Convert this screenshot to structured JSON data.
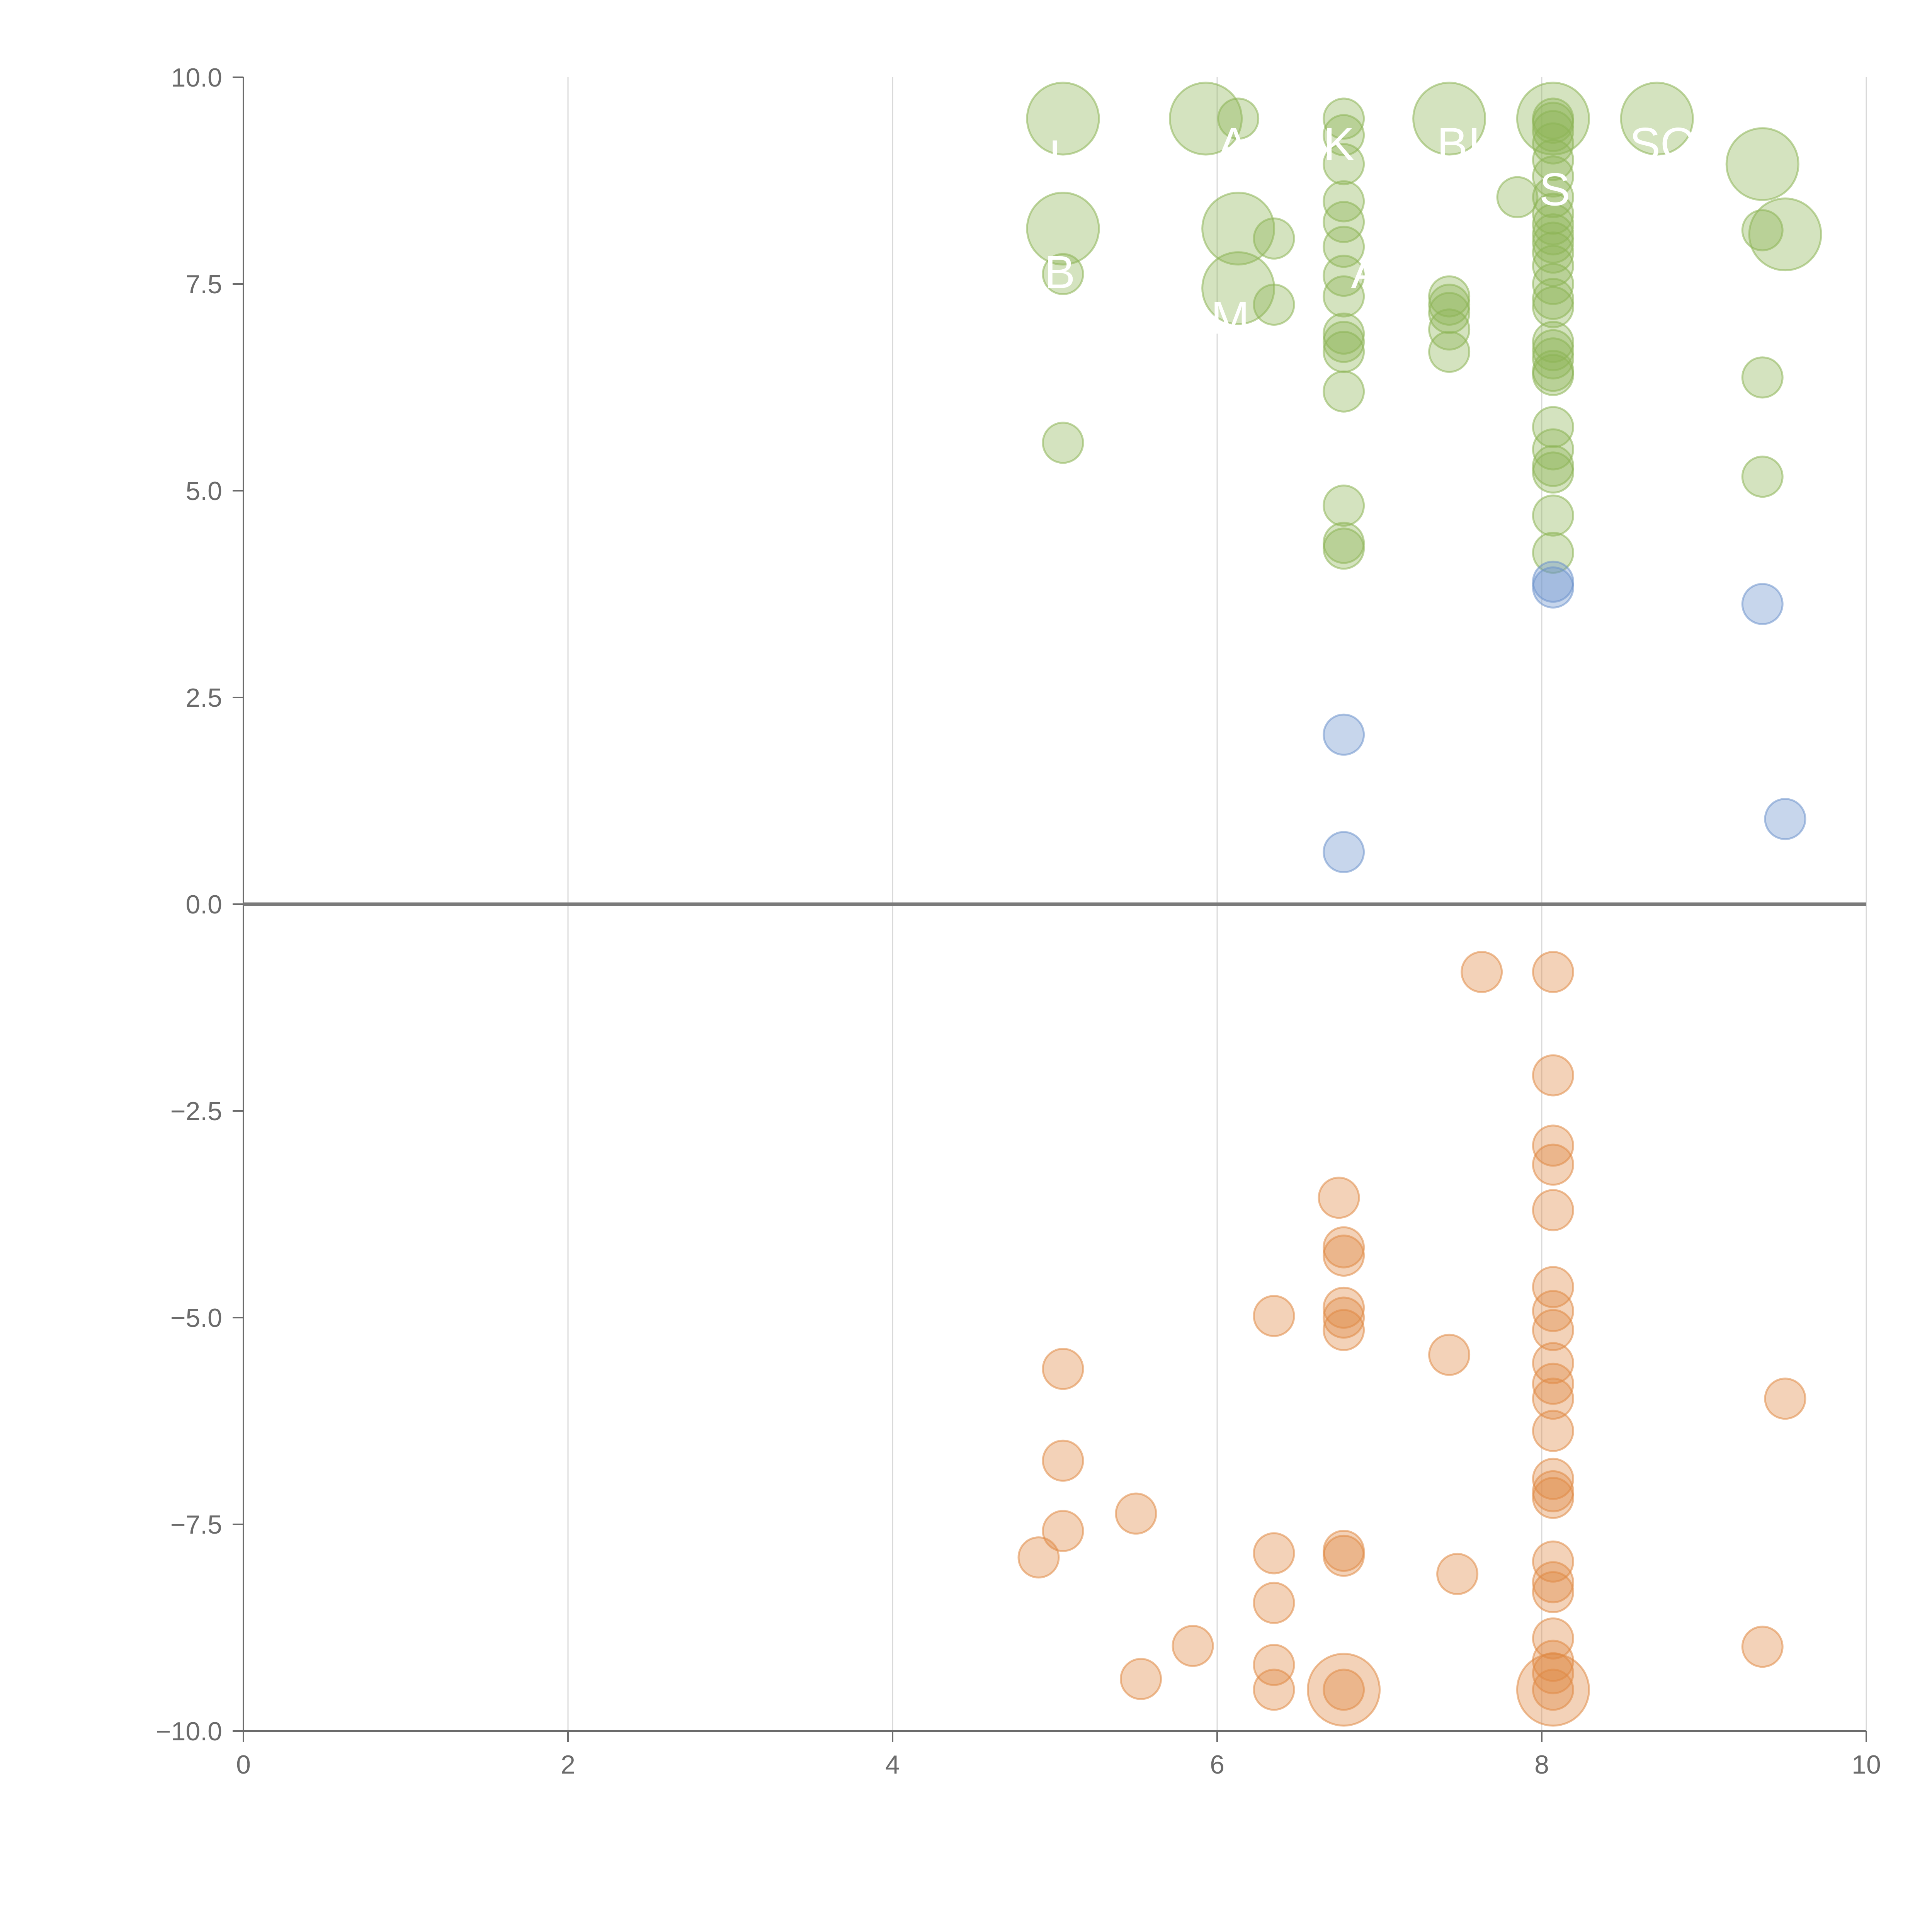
{
  "chart_data": {
    "type": "scatter",
    "xlim": [
      0,
      10
    ],
    "ylim": [
      -10,
      10
    ],
    "x_ticks": [
      "0",
      "2",
      "4",
      "6",
      "8",
      "10"
    ],
    "y_ticks": [
      "10.0",
      "7.5",
      "5.0",
      "2.5",
      "0.0",
      "−2.5",
      "−5.0",
      "−7.5",
      "−10.0"
    ],
    "grid": {
      "vertical": true,
      "horizontal": false
    },
    "zero_line": true,
    "colors": {
      "positive": "#8db556",
      "neutral": "#6d93cc",
      "negative": "#e08a45"
    },
    "points": [
      {
        "x": 5.05,
        "y": 9.5,
        "size": "large",
        "group": "positive"
      },
      {
        "x": 5.93,
        "y": 9.5,
        "size": "large",
        "group": "positive"
      },
      {
        "x": 6.13,
        "y": 9.5,
        "size": "small",
        "group": "positive"
      },
      {
        "x": 6.78,
        "y": 9.5,
        "size": "small",
        "group": "positive"
      },
      {
        "x": 6.78,
        "y": 9.3,
        "size": "small",
        "group": "positive"
      },
      {
        "x": 6.78,
        "y": 8.95,
        "size": "small",
        "group": "positive"
      },
      {
        "x": 6.78,
        "y": 8.5,
        "size": "small",
        "group": "positive"
      },
      {
        "x": 6.78,
        "y": 8.25,
        "size": "small",
        "group": "positive"
      },
      {
        "x": 6.78,
        "y": 7.95,
        "size": "small",
        "group": "positive"
      },
      {
        "x": 6.78,
        "y": 7.6,
        "size": "small",
        "group": "positive"
      },
      {
        "x": 6.78,
        "y": 7.35,
        "size": "small",
        "group": "positive"
      },
      {
        "x": 6.78,
        "y": 6.9,
        "size": "small",
        "group": "positive"
      },
      {
        "x": 6.78,
        "y": 6.8,
        "size": "small",
        "group": "positive"
      },
      {
        "x": 6.78,
        "y": 6.68,
        "size": "small",
        "group": "positive"
      },
      {
        "x": 6.78,
        "y": 6.2,
        "size": "small",
        "group": "positive"
      },
      {
        "x": 6.78,
        "y": 4.82,
        "size": "small",
        "group": "positive"
      },
      {
        "x": 6.78,
        "y": 4.37,
        "size": "small",
        "group": "positive"
      },
      {
        "x": 6.78,
        "y": 4.3,
        "size": "small",
        "group": "positive"
      },
      {
        "x": 7.43,
        "y": 9.5,
        "size": "large",
        "group": "positive"
      },
      {
        "x": 7.43,
        "y": 7.35,
        "size": "small",
        "group": "positive"
      },
      {
        "x": 7.43,
        "y": 7.25,
        "size": "small",
        "group": "positive"
      },
      {
        "x": 7.43,
        "y": 7.15,
        "size": "small",
        "group": "positive"
      },
      {
        "x": 7.43,
        "y": 6.95,
        "size": "small",
        "group": "positive"
      },
      {
        "x": 7.43,
        "y": 6.68,
        "size": "small",
        "group": "positive"
      },
      {
        "x": 7.85,
        "y": 8.55,
        "size": "small",
        "group": "positive"
      },
      {
        "x": 8.07,
        "y": 9.5,
        "size": "large",
        "group": "positive"
      },
      {
        "x": 8.07,
        "y": 9.5,
        "size": "small",
        "group": "positive"
      },
      {
        "x": 8.07,
        "y": 9.45,
        "size": "small",
        "group": "positive"
      },
      {
        "x": 8.07,
        "y": 9.35,
        "size": "small",
        "group": "positive"
      },
      {
        "x": 8.07,
        "y": 9.2,
        "size": "small",
        "group": "positive"
      },
      {
        "x": 8.07,
        "y": 9.0,
        "size": "small",
        "group": "positive"
      },
      {
        "x": 8.07,
        "y": 8.8,
        "size": "small",
        "group": "positive"
      },
      {
        "x": 8.07,
        "y": 8.55,
        "size": "small",
        "group": "positive"
      },
      {
        "x": 8.07,
        "y": 8.35,
        "size": "small",
        "group": "positive"
      },
      {
        "x": 8.07,
        "y": 8.22,
        "size": "small",
        "group": "positive"
      },
      {
        "x": 8.07,
        "y": 8.1,
        "size": "small",
        "group": "positive"
      },
      {
        "x": 8.07,
        "y": 8.0,
        "size": "small",
        "group": "positive"
      },
      {
        "x": 8.07,
        "y": 7.88,
        "size": "small",
        "group": "positive"
      },
      {
        "x": 8.07,
        "y": 7.72,
        "size": "small",
        "group": "positive"
      },
      {
        "x": 8.07,
        "y": 7.5,
        "size": "small",
        "group": "positive"
      },
      {
        "x": 8.07,
        "y": 7.32,
        "size": "small",
        "group": "positive"
      },
      {
        "x": 8.07,
        "y": 7.22,
        "size": "small",
        "group": "positive"
      },
      {
        "x": 8.07,
        "y": 6.8,
        "size": "small",
        "group": "positive"
      },
      {
        "x": 8.07,
        "y": 6.7,
        "size": "small",
        "group": "positive"
      },
      {
        "x": 8.07,
        "y": 6.6,
        "size": "small",
        "group": "positive"
      },
      {
        "x": 8.07,
        "y": 6.45,
        "size": "small",
        "group": "positive"
      },
      {
        "x": 8.07,
        "y": 6.4,
        "size": "small",
        "group": "positive"
      },
      {
        "x": 8.07,
        "y": 5.77,
        "size": "small",
        "group": "positive"
      },
      {
        "x": 8.07,
        "y": 5.5,
        "size": "small",
        "group": "positive"
      },
      {
        "x": 8.07,
        "y": 5.3,
        "size": "small",
        "group": "positive"
      },
      {
        "x": 8.07,
        "y": 5.22,
        "size": "small",
        "group": "positive"
      },
      {
        "x": 8.07,
        "y": 4.7,
        "size": "small",
        "group": "positive"
      },
      {
        "x": 8.07,
        "y": 4.25,
        "size": "small",
        "group": "positive"
      },
      {
        "x": 8.71,
        "y": 9.5,
        "size": "large",
        "group": "positive"
      },
      {
        "x": 5.05,
        "y": 8.17,
        "size": "large",
        "group": "positive"
      },
      {
        "x": 5.05,
        "y": 7.62,
        "size": "small",
        "group": "positive"
      },
      {
        "x": 5.05,
        "y": 5.58,
        "size": "small",
        "group": "positive"
      },
      {
        "x": 6.13,
        "y": 8.17,
        "size": "large",
        "group": "positive"
      },
      {
        "x": 6.35,
        "y": 8.05,
        "size": "small",
        "group": "positive"
      },
      {
        "x": 6.13,
        "y": 7.45,
        "size": "large",
        "group": "positive"
      },
      {
        "x": 6.35,
        "y": 7.25,
        "size": "small",
        "group": "positive"
      },
      {
        "x": 9.36,
        "y": 8.95,
        "size": "large",
        "group": "positive"
      },
      {
        "x": 9.5,
        "y": 8.1,
        "size": "large",
        "group": "positive"
      },
      {
        "x": 9.36,
        "y": 8.15,
        "size": "small",
        "group": "positive"
      },
      {
        "x": 9.36,
        "y": 6.37,
        "size": "small",
        "group": "positive"
      },
      {
        "x": 9.36,
        "y": 5.17,
        "size": "small",
        "group": "positive"
      },
      {
        "x": 8.07,
        "y": 3.9,
        "size": "small",
        "group": "neutral"
      },
      {
        "x": 8.07,
        "y": 3.83,
        "size": "small",
        "group": "neutral"
      },
      {
        "x": 9.36,
        "y": 3.63,
        "size": "small",
        "group": "neutral"
      },
      {
        "x": 6.78,
        "y": 2.05,
        "size": "small",
        "group": "neutral"
      },
      {
        "x": 6.78,
        "y": 0.63,
        "size": "small",
        "group": "neutral"
      },
      {
        "x": 9.5,
        "y": 1.03,
        "size": "small",
        "group": "neutral"
      },
      {
        "x": 7.63,
        "y": -0.82,
        "size": "small",
        "group": "negative"
      },
      {
        "x": 8.07,
        "y": -0.82,
        "size": "small",
        "group": "negative"
      },
      {
        "x": 8.07,
        "y": -2.07,
        "size": "small",
        "group": "negative"
      },
      {
        "x": 8.07,
        "y": -2.92,
        "size": "small",
        "group": "negative"
      },
      {
        "x": 8.07,
        "y": -3.15,
        "size": "small",
        "group": "negative"
      },
      {
        "x": 8.07,
        "y": -3.7,
        "size": "small",
        "group": "negative"
      },
      {
        "x": 8.07,
        "y": -4.63,
        "size": "small",
        "group": "negative"
      },
      {
        "x": 8.07,
        "y": -4.92,
        "size": "small",
        "group": "negative"
      },
      {
        "x": 8.07,
        "y": -5.15,
        "size": "small",
        "group": "negative"
      },
      {
        "x": 8.07,
        "y": -5.55,
        "size": "small",
        "group": "negative"
      },
      {
        "x": 8.07,
        "y": -5.8,
        "size": "small",
        "group": "negative"
      },
      {
        "x": 8.07,
        "y": -5.98,
        "size": "small",
        "group": "negative"
      },
      {
        "x": 8.07,
        "y": -6.37,
        "size": "small",
        "group": "negative"
      },
      {
        "x": 8.07,
        "y": -6.95,
        "size": "small",
        "group": "negative"
      },
      {
        "x": 8.07,
        "y": -7.1,
        "size": "small",
        "group": "negative"
      },
      {
        "x": 8.07,
        "y": -7.18,
        "size": "small",
        "group": "negative"
      },
      {
        "x": 8.07,
        "y": -7.95,
        "size": "small",
        "group": "negative"
      },
      {
        "x": 8.07,
        "y": -8.2,
        "size": "small",
        "group": "negative"
      },
      {
        "x": 8.07,
        "y": -8.32,
        "size": "small",
        "group": "negative"
      },
      {
        "x": 8.07,
        "y": -8.88,
        "size": "small",
        "group": "negative"
      },
      {
        "x": 8.07,
        "y": -9.15,
        "size": "small",
        "group": "negative"
      },
      {
        "x": 8.07,
        "y": -9.3,
        "size": "small",
        "group": "negative"
      },
      {
        "x": 8.07,
        "y": -9.5,
        "size": "small",
        "group": "negative"
      },
      {
        "x": 8.07,
        "y": -9.5,
        "size": "large",
        "group": "negative"
      },
      {
        "x": 6.78,
        "y": -9.5,
        "size": "large",
        "group": "negative"
      },
      {
        "x": 6.78,
        "y": -9.5,
        "size": "small",
        "group": "negative"
      },
      {
        "x": 6.78,
        "y": -7.82,
        "size": "small",
        "group": "negative"
      },
      {
        "x": 6.78,
        "y": -7.88,
        "size": "small",
        "group": "negative"
      },
      {
        "x": 6.78,
        "y": -5.15,
        "size": "small",
        "group": "negative"
      },
      {
        "x": 6.78,
        "y": -5.0,
        "size": "small",
        "group": "negative"
      },
      {
        "x": 6.78,
        "y": -4.88,
        "size": "small",
        "group": "negative"
      },
      {
        "x": 6.78,
        "y": -4.25,
        "size": "small",
        "group": "negative"
      },
      {
        "x": 6.78,
        "y": -4.15,
        "size": "small",
        "group": "negative"
      },
      {
        "x": 6.75,
        "y": -3.55,
        "size": "small",
        "group": "negative"
      },
      {
        "x": 6.35,
        "y": -4.98,
        "size": "small",
        "group": "negative"
      },
      {
        "x": 6.35,
        "y": -7.85,
        "size": "small",
        "group": "negative"
      },
      {
        "x": 6.35,
        "y": -8.45,
        "size": "small",
        "group": "negative"
      },
      {
        "x": 6.35,
        "y": -9.2,
        "size": "small",
        "group": "negative"
      },
      {
        "x": 6.35,
        "y": -9.5,
        "size": "small",
        "group": "negative"
      },
      {
        "x": 7.43,
        "y": -5.45,
        "size": "small",
        "group": "negative"
      },
      {
        "x": 7.48,
        "y": -8.1,
        "size": "small",
        "group": "negative"
      },
      {
        "x": 5.05,
        "y": -5.62,
        "size": "small",
        "group": "negative"
      },
      {
        "x": 5.05,
        "y": -6.73,
        "size": "small",
        "group": "negative"
      },
      {
        "x": 5.05,
        "y": -7.58,
        "size": "small",
        "group": "negative"
      },
      {
        "x": 4.9,
        "y": -7.9,
        "size": "small",
        "group": "negative"
      },
      {
        "x": 5.5,
        "y": -7.37,
        "size": "small",
        "group": "negative"
      },
      {
        "x": 5.53,
        "y": -9.37,
        "size": "small",
        "group": "negative"
      },
      {
        "x": 5.85,
        "y": -8.97,
        "size": "small",
        "group": "negative"
      },
      {
        "x": 9.36,
        "y": -8.98,
        "size": "small",
        "group": "negative"
      },
      {
        "x": 9.5,
        "y": -5.98,
        "size": "small",
        "group": "negative"
      }
    ],
    "labels": [
      {
        "text": "I",
        "x": 5.0,
        "y": 8.85
      },
      {
        "text": "A",
        "x": 6.1,
        "y": 9.0
      },
      {
        "text": "K",
        "x": 6.75,
        "y": 9.0
      },
      {
        "text": "BIO",
        "x": 7.6,
        "y": 9.0
      },
      {
        "text": "SON",
        "x": 8.85,
        "y": 9.0
      },
      {
        "text": "S",
        "x": 8.08,
        "y": 8.45
      },
      {
        "text": "A",
        "x": 6.92,
        "y": 7.45
      },
      {
        "text": "B",
        "x": 5.03,
        "y": 7.45
      },
      {
        "text": "M",
        "x": 6.08,
        "y": 6.9
      },
      {
        "text": "‘",
        "x": 5.15,
        "y": 5.55
      }
    ]
  }
}
